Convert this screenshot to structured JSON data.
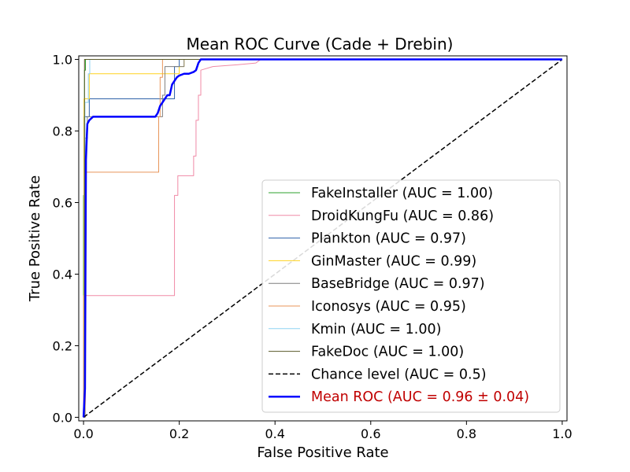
{
  "chart_data": {
    "type": "line",
    "title": "Mean ROC Curve (Cade + Drebin)",
    "xlabel": "False Positive Rate",
    "ylabel": "True Positive Rate",
    "xlim": [
      -0.01,
      1.01
    ],
    "ylim": [
      -0.01,
      1.01
    ],
    "xticks": [
      "0.0",
      "0.2",
      "0.4",
      "0.6",
      "0.8",
      "1.0"
    ],
    "yticks": [
      "0.0",
      "0.2",
      "0.4",
      "0.6",
      "0.8",
      "1.0"
    ],
    "grid": false,
    "legend_position": "lower-right",
    "series": [
      {
        "name": "FakeInstaller (AUC = 1.00)",
        "color": "#2ca02c",
        "style": "solid",
        "width": 1,
        "x": [
          0,
          0,
          0.002,
          0.002,
          0.004,
          0.004,
          1.0
        ],
        "y": [
          0,
          0.62,
          0.62,
          0.97,
          0.97,
          1.0,
          1.0
        ]
      },
      {
        "name": "DroidKungFu (AUC = 0.86)",
        "color": "#f08aa6",
        "style": "solid",
        "width": 1,
        "x": [
          0,
          0,
          0.19,
          0.19,
          0.197,
          0.197,
          0.23,
          0.23,
          0.235,
          0.235,
          0.24,
          0.24,
          0.245,
          0.245,
          0.27,
          0.32,
          0.36,
          0.37,
          1.0
        ],
        "y": [
          0,
          0.34,
          0.34,
          0.62,
          0.62,
          0.675,
          0.675,
          0.73,
          0.73,
          0.83,
          0.83,
          0.9,
          0.9,
          0.97,
          0.98,
          0.985,
          0.99,
          1.0,
          1.0
        ]
      },
      {
        "name": "Plankton (AUC = 0.97)",
        "color": "#2b5fa8",
        "style": "solid",
        "width": 1,
        "x": [
          0,
          0.001,
          0.001,
          0.012,
          0.012,
          0.19,
          0.19,
          0.2,
          0.2,
          1.0
        ],
        "y": [
          0,
          0.0,
          0.84,
          0.84,
          0.89,
          0.89,
          0.98,
          0.98,
          1.0,
          1.0
        ]
      },
      {
        "name": "GinMaster (AUC = 0.99)",
        "color": "#ffd21f",
        "style": "solid",
        "width": 1,
        "x": [
          0,
          0.001,
          0.001,
          0.012,
          0.012,
          0.2,
          0.2,
          0.21,
          0.21,
          1.0
        ],
        "y": [
          0,
          0.0,
          0.89,
          0.89,
          0.96,
          0.96,
          0.98,
          0.98,
          1.0,
          1.0
        ]
      },
      {
        "name": "BaseBridge (AUC = 0.97)",
        "color": "#7f7f7f",
        "style": "solid",
        "width": 1,
        "x": [
          0,
          0.003,
          0.003,
          0.008,
          0.008,
          0.165,
          0.165,
          0.17,
          0.17,
          0.21,
          0.21,
          0.22,
          0.22,
          1.0
        ],
        "y": [
          0,
          0.0,
          0.78,
          0.78,
          0.84,
          0.84,
          0.9,
          0.9,
          0.98,
          0.98,
          1.0,
          1.0,
          1.0,
          1.0
        ]
      },
      {
        "name": "Iconosys (AUC = 0.95)",
        "color": "#e8955a",
        "style": "solid",
        "width": 1,
        "x": [
          0,
          0.004,
          0.004,
          0.157,
          0.157,
          0.16,
          0.16,
          0.165,
          0.165,
          1.0
        ],
        "y": [
          0,
          0.0,
          0.685,
          0.685,
          0.84,
          0.84,
          0.95,
          0.95,
          1.0,
          1.0
        ]
      },
      {
        "name": "Kmin (AUC = 1.00)",
        "color": "#8fd3f2",
        "style": "solid",
        "width": 1,
        "x": [
          0,
          0.003,
          0.003,
          0.01,
          0.01,
          0.013,
          0.013,
          1.0
        ],
        "y": [
          0,
          0.0,
          0.88,
          0.88,
          0.96,
          0.96,
          1.0,
          1.0
        ]
      },
      {
        "name": "FakeDoc (AUC = 1.00)",
        "color": "#5a5a2a",
        "style": "solid",
        "width": 1,
        "x": [
          0,
          0.002,
          0.002,
          1.0
        ],
        "y": [
          0,
          0.0,
          1.0,
          1.0
        ]
      },
      {
        "name": "Chance level (AUC = 0.5)",
        "color": "#000000",
        "style": "dashed",
        "width": 1.5,
        "x": [
          0,
          1
        ],
        "y": [
          0,
          1
        ]
      },
      {
        "name": "Mean ROC (AUC = 0.96 ± 0.04)",
        "color": "#0000ff",
        "style": "solid",
        "width": 2.5,
        "label_color": "#c00000",
        "x": [
          0,
          0.003,
          0.005,
          0.007,
          0.008,
          0.012,
          0.02,
          0.05,
          0.1,
          0.15,
          0.155,
          0.16,
          0.165,
          0.17,
          0.175,
          0.18,
          0.185,
          0.19,
          0.195,
          0.2,
          0.21,
          0.22,
          0.23,
          0.235,
          0.24,
          0.245,
          0.25,
          1.0
        ],
        "y": [
          0,
          0.08,
          0.72,
          0.79,
          0.82,
          0.83,
          0.84,
          0.84,
          0.84,
          0.84,
          0.85,
          0.87,
          0.88,
          0.89,
          0.9,
          0.9,
          0.93,
          0.94,
          0.95,
          0.955,
          0.96,
          0.96,
          0.965,
          0.97,
          0.99,
          1.0,
          1.0,
          1.0
        ]
      }
    ]
  }
}
